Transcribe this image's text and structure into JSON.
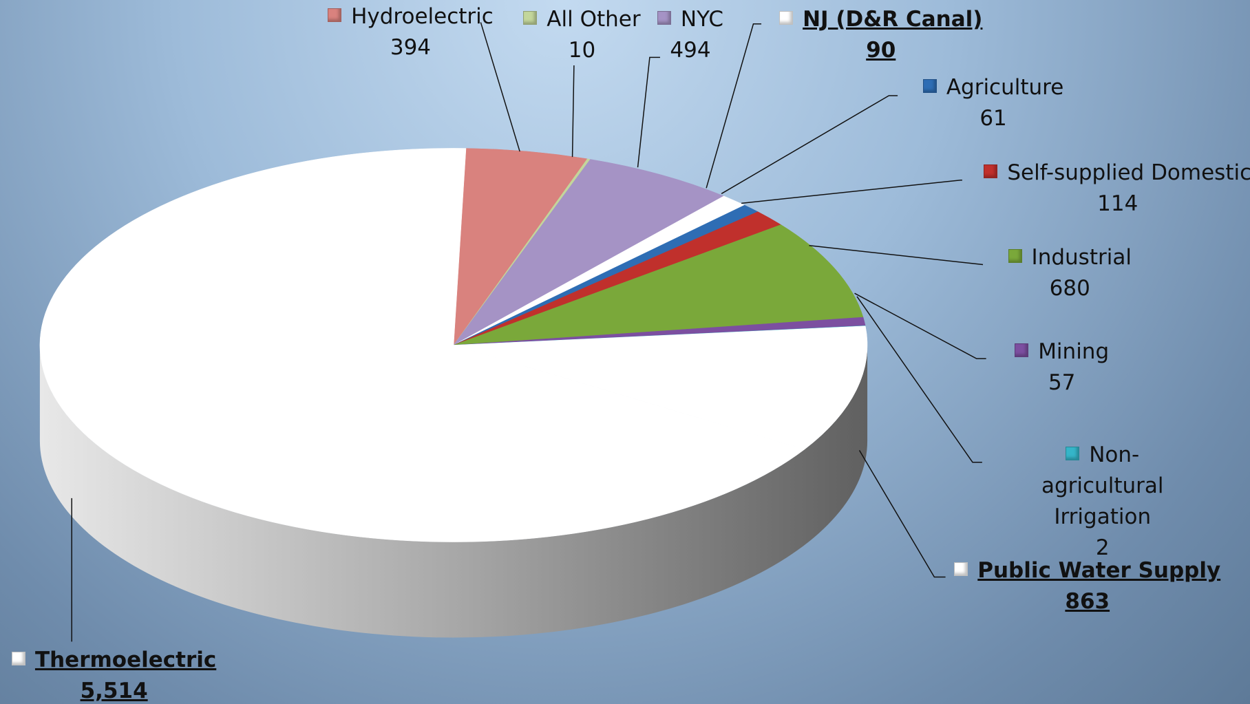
{
  "chart_data": {
    "type": "pie",
    "categories": [
      "Hydroelectric",
      "All Other",
      "NYC",
      "NJ (D&R Canal)",
      "Agriculture",
      "Self-supplied Domestic",
      "Industrial",
      "Mining",
      "Non-agricultural Irrigation",
      "Public Water Supply",
      "Thermoelectric"
    ],
    "values": [
      394,
      10,
      494,
      90,
      61,
      114,
      680,
      57,
      2,
      863,
      5514
    ],
    "value_labels": [
      "394",
      "10",
      "494",
      "90",
      "61",
      "114",
      "680",
      "57",
      "2",
      "863",
      "5,514"
    ],
    "colors": [
      "#d9827e",
      "#c3d69b",
      "#a593c5",
      "#ffffff",
      "#2e6db4",
      "#c0302c",
      "#7aa83a",
      "#7c4fa0",
      "#35b5c8",
      "#ffffff",
      "#ffffff"
    ]
  }
}
